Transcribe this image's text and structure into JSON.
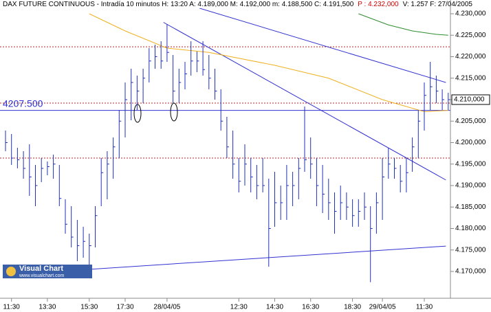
{
  "chart_data": {
    "type": "ohlc",
    "header": "DAX FUTURE CONTINUOUS - Intradía 10 minutos H: 13:20  A: 4.189,000  M: 4.192,000  m: 4.188,500  C: 4.191,500",
    "header_highlight": "P : 4.232,000",
    "header_tail": "V: 1.257  F: 27/04/2005",
    "categories": [
      null,
      "11:30",
      null,
      null,
      null,
      null,
      null,
      "13:30",
      null,
      null,
      null,
      null,
      null,
      null,
      "15:30",
      null,
      null,
      null,
      null,
      null,
      "17:30",
      null,
      null,
      null,
      null,
      null,
      null,
      "28/04/05",
      null,
      null,
      null,
      null,
      null,
      null,
      null,
      null,
      null,
      null,
      null,
      "12:30",
      null,
      null,
      null,
      null,
      null,
      "14:30",
      null,
      null,
      null,
      null,
      null,
      "16:30",
      null,
      null,
      null,
      null,
      null,
      null,
      "18:30",
      null,
      null,
      null,
      null,
      "29/04/05",
      null,
      null,
      null,
      null,
      null,
      null,
      "11:30",
      null,
      null,
      null,
      null
    ],
    "high": [
      4202.8,
      4202.0,
      4198.8,
      4198.0,
      4199.6,
      4194.8,
      4196.4,
      4195.6,
      4197.2,
      4194.8,
      4186.8,
      4185.2,
      4182.0,
      4180.4,
      4178.8,
      4185.2,
      4196.4,
      4198.0,
      4201.2,
      4207.6,
      4214.0,
      4217.2,
      4215.6,
      4217.2,
      4222.0,
      4222.8,
      4223.6,
      4227.6,
      4220.4,
      4217.2,
      4218.8,
      4223.6,
      4221.2,
      4223.6,
      4220.4,
      4217.2,
      4212.4,
      4206.0,
      4202.8,
      4196.4,
      4199.6,
      4196.4,
      4194.8,
      4196.4,
      4191.6,
      4193.2,
      4190.0,
      4194.8,
      4193.2,
      4196.4,
      4208.4,
      4201.2,
      4196.4,
      4194.8,
      4191.6,
      4188.4,
      4190.0,
      4188.4,
      4186.8,
      4186.8,
      4188.4,
      4185.2,
      4188.4,
      4196.4,
      4198.8,
      4196.4,
      4194.8,
      4196.4,
      4201.2,
      4207.6,
      4214.0,
      4218.8,
      4215.6,
      4212.4,
      4211.6
    ],
    "low": [
      4198.0,
      4194.8,
      4194.0,
      4191.6,
      4187.6,
      4185.2,
      4190.8,
      4192.4,
      4191.6,
      4185.2,
      4178.8,
      4175.6,
      4172.4,
      4173.2,
      4170.0,
      4175.6,
      4185.2,
      4186.8,
      4191.6,
      4196.4,
      4201.2,
      4205.2,
      4207.6,
      4209.2,
      4214.0,
      4217.2,
      4217.2,
      4218.8,
      4209.2,
      4209.2,
      4212.4,
      4215.6,
      4216.4,
      4215.6,
      4212.4,
      4210.0,
      4202.8,
      4196.4,
      4191.6,
      4188.4,
      4190.0,
      4188.4,
      4186.8,
      4188.4,
      4171.1,
      4180.4,
      4182.0,
      4182.0,
      4185.2,
      4186.8,
      4193.2,
      4191.6,
      4185.2,
      4183.6,
      4182.0,
      4178.8,
      4182.0,
      4182.0,
      4180.4,
      4180.4,
      4182.0,
      4167.5,
      4178.8,
      4182.0,
      4191.6,
      4191.6,
      4188.4,
      4188.4,
      4193.2,
      4196.4,
      4202.8,
      4207.6,
      4209.2,
      4207.6,
      4207.6
    ],
    "close": [
      4200.0,
      4196.4,
      4196.0,
      4194.0,
      4192.0,
      4190.0,
      4194.0,
      4194.4,
      4195.0,
      4187.0,
      4181.0,
      4178.0,
      4176.0,
      4177.0,
      4176.0,
      4183.0,
      4193.0,
      4195.0,
      4199.0,
      4205.0,
      4210.0,
      4214.0,
      4212.0,
      4215.0,
      4219.0,
      4220.0,
      4219.0,
      4221.0,
      4212.0,
      4214.0,
      4216.0,
      4219.0,
      4219.0,
      4217.0,
      4215.0,
      4212.0,
      4205.0,
      4199.0,
      4195.0,
      4191.0,
      4195.0,
      4192.0,
      4190.0,
      4190.0,
      4180.0,
      4186.0,
      4186.0,
      4190.0,
      4190.0,
      4194.0,
      4196.0,
      4195.0,
      4190.0,
      4188.0,
      4186.0,
      4184.0,
      4186.0,
      4185.0,
      4183.0,
      4184.0,
      4185.0,
      4180.0,
      4186.0,
      4192.0,
      4195.0,
      4194.0,
      4191.0,
      4193.0,
      4199.0,
      4205.0,
      4211.0,
      4213.0,
      4212.0,
      4210.0,
      4210.0
    ],
    "bar_color": "#1f2fb8",
    "averages": [
      {
        "color": "#f0b020",
        "x": [
          14,
          20,
          27,
          34,
          45,
          54,
          63,
          70,
          74
        ],
        "values": [
          4230,
          4226,
          4222,
          4221,
          4218,
          4215,
          4210,
          4207.2,
          4207.5
        ]
      },
      {
        "color": "#2e8b2e",
        "x": [
          59,
          64,
          68,
          72,
          74
        ],
        "values": [
          4230,
          4227.4,
          4226,
          4225.2,
          4225
        ]
      }
    ],
    "trendlines": [
      {
        "x": [
          26.4,
          73.6
        ],
        "values": [
          4228,
          4191.3
        ]
      },
      {
        "x": [
          32.4,
          73.6
        ],
        "values": [
          4231.3,
          4214
        ]
      },
      {
        "x": [
          -0.3,
          73.6
        ],
        "values": [
          4169.2,
          4175.9
        ]
      }
    ],
    "trendline_color": "#3030d0",
    "levels": [
      4222.3,
      4209.2,
      4196.4
    ],
    "level_color": "#b02020",
    "marker_line": {
      "value": 4207.5,
      "label": "4207.500"
    },
    "last_price": {
      "value": 4210,
      "label": "4.210,000"
    },
    "ylim": [
      4167,
      4233.2
    ],
    "yticks": [
      {
        "value": 4170,
        "label": "4.170,000"
      },
      {
        "value": 4175,
        "label": "4.175,000"
      },
      {
        "value": 4180,
        "label": "4.180,000"
      },
      {
        "value": 4185,
        "label": "4.185,000"
      },
      {
        "value": 4190,
        "label": "4.190,000"
      },
      {
        "value": 4195,
        "label": "4.195,000"
      },
      {
        "value": 4200,
        "label": "4.200,000"
      },
      {
        "value": 4205,
        "label": "4.205,000"
      },
      {
        "value": 4210,
        "label": "4.210,000"
      },
      {
        "value": 4215,
        "label": "4.215,000"
      },
      {
        "value": 4220,
        "label": "4.220,000"
      },
      {
        "value": 4225,
        "label": "4.225,000"
      },
      {
        "value": 4230,
        "label": "4.230,000"
      }
    ],
    "logo": "Visual Chart",
    "logo_url": "www.visualchart.com"
  }
}
